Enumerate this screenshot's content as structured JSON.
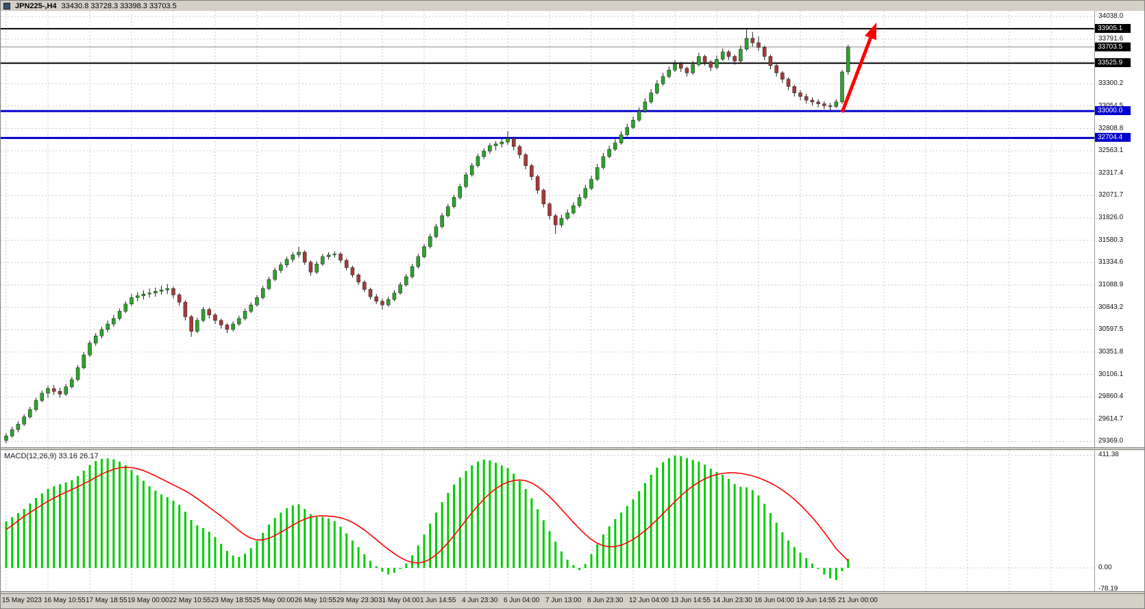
{
  "window": {
    "symbol_period": "JPN225-,H4",
    "ohlc": "33430.8 33728.3 33398.3 33703.5"
  },
  "macd": {
    "title": "MACD(12,26,9) 33.16 26.17",
    "macd_value": 33.16,
    "signal_value": 26.17
  },
  "price_axis_labels": [
    {
      "text": "33905.1",
      "value": 33905.1,
      "bg": "#000000"
    },
    {
      "text": "33703.5",
      "value": 33703.5,
      "bg": "#000000"
    },
    {
      "text": "33525.9",
      "value": 33525.9,
      "bg": "#000000"
    },
    {
      "text": "33000.0",
      "value": 33000.0,
      "bg": "#0000CC"
    },
    {
      "text": "32704.4",
      "value": 32704.4,
      "bg": "#0000CC"
    }
  ],
  "macd_axis": [
    {
      "text": "411.38",
      "value": 411.38
    },
    {
      "text": "0.00",
      "value": 0
    },
    {
      "text": "-78.19",
      "value": -78.19
    }
  ],
  "colors": {
    "bull": "#2DA32D",
    "bear": "#A63A3A",
    "wick": "#1a1a1a",
    "grid": "#c9c9c9",
    "macd_hist": "#00CC00",
    "macd_signal": "#FF0000",
    "hline_black": "#000000",
    "hline_blue": "#0000CC",
    "chrome": "#d4d0c8",
    "arrow": "#FF0000"
  },
  "arrow": {
    "from": [
      1228,
      163
    ],
    "to": [
      1278,
      32
    ],
    "color": "#FF0000",
    "width": 5
  },
  "chart_data": {
    "type": "candlestick",
    "symbol": "JPN225-",
    "timeframe": "H4",
    "title": "JPN225- H4 with MACD(12,26,9)",
    "x_labels": [
      "15 May 2023",
      "16 May 10:55",
      "17 May 18:55",
      "19 May 00:00",
      "22 May 10:55",
      "23 May 18:55",
      "25 May 00:00",
      "26 May 10:55",
      "29 May 23:30",
      "31 May 04:00",
      "1 Jun 14:55",
      "4 Jun 23:30",
      "6 Jun 04:00",
      "7 Jun 13:00",
      "8 Jun 23:30",
      "12 Jun 04:00",
      "13 Jun 14:55",
      "14 Jun 23:30",
      "16 Jun 04:00",
      "19 Jun 14:55",
      "21 Jun 00:00"
    ],
    "bars_per_label": 7,
    "last_price": 33703.5,
    "price_axis": {
      "min_visible": 29369.0,
      "max_visible": 34038.0,
      "ticks": [
        "34038.0",
        "33791.6",
        "33545.9",
        "33300.2",
        "33054.5",
        "32808.8",
        "32563.1",
        "32317.4",
        "32071.7",
        "31826.0",
        "31580.3",
        "31334.6",
        "31088.9",
        "30843.2",
        "30597.5",
        "30351.8",
        "30106.1",
        "29860.4",
        "29614.7",
        "29369.0"
      ]
    },
    "horizontal_lines": [
      {
        "value": 33905.1,
        "color": "#000000",
        "width": 2,
        "style": "solid"
      },
      {
        "value": 33703.5,
        "color": "#888888",
        "width": 1,
        "style": "solid"
      },
      {
        "value": 33525.9,
        "color": "#000000",
        "width": 2,
        "style": "solid"
      },
      {
        "value": 33000.0,
        "color": "#0000CC",
        "width": 3,
        "style": "solid"
      },
      {
        "value": 32704.4,
        "color": "#0000CC",
        "width": 3,
        "style": "solid"
      }
    ],
    "candles": [
      [
        29380,
        29460,
        29350,
        29430
      ],
      [
        29430,
        29530,
        29410,
        29500
      ],
      [
        29500,
        29590,
        29470,
        29560
      ],
      [
        29560,
        29670,
        29540,
        29640
      ],
      [
        29640,
        29750,
        29620,
        29720
      ],
      [
        29720,
        29850,
        29700,
        29820
      ],
      [
        29820,
        29930,
        29800,
        29900
      ],
      [
        29900,
        29980,
        29850,
        29950
      ],
      [
        29950,
        29990,
        29880,
        29920
      ],
      [
        29920,
        29960,
        29850,
        29890
      ],
      [
        29890,
        30000,
        29870,
        29970
      ],
      [
        29970,
        30080,
        29950,
        30050
      ],
      [
        30050,
        30210,
        30030,
        30180
      ],
      [
        30180,
        30350,
        30160,
        30320
      ],
      [
        30320,
        30480,
        30300,
        30450
      ],
      [
        30450,
        30560,
        30420,
        30530
      ],
      [
        30530,
        30630,
        30500,
        30600
      ],
      [
        30600,
        30700,
        30570,
        30660
      ],
      [
        30660,
        30760,
        30630,
        30720
      ],
      [
        30720,
        30830,
        30700,
        30800
      ],
      [
        30800,
        30910,
        30780,
        30880
      ],
      [
        30880,
        30990,
        30860,
        30950
      ],
      [
        30950,
        31010,
        30910,
        30970
      ],
      [
        30970,
        31030,
        30930,
        30990
      ],
      [
        30990,
        31050,
        30950,
        31000
      ],
      [
        31000,
        31060,
        30960,
        31020
      ],
      [
        31020,
        31080,
        30980,
        31035
      ],
      [
        31035,
        31100,
        30990,
        31050
      ],
      [
        31050,
        31070,
        30940,
        30980
      ],
      [
        30980,
        31000,
        30860,
        30900
      ],
      [
        30900,
        30920,
        30700,
        30740
      ],
      [
        30740,
        30760,
        30520,
        30580
      ],
      [
        30580,
        30730,
        30560,
        30700
      ],
      [
        30700,
        30850,
        30680,
        30820
      ],
      [
        30820,
        30840,
        30720,
        30760
      ],
      [
        30760,
        30780,
        30660,
        30700
      ],
      [
        30700,
        30720,
        30610,
        30650
      ],
      [
        30650,
        30670,
        30560,
        30600
      ],
      [
        30600,
        30690,
        30580,
        30660
      ],
      [
        30660,
        30750,
        30640,
        30720
      ],
      [
        30720,
        30830,
        30700,
        30800
      ],
      [
        30800,
        30900,
        30780,
        30870
      ],
      [
        30870,
        30980,
        30850,
        30950
      ],
      [
        30950,
        31080,
        30930,
        31050
      ],
      [
        31050,
        31180,
        31030,
        31150
      ],
      [
        31150,
        31280,
        31130,
        31250
      ],
      [
        31250,
        31340,
        31220,
        31310
      ],
      [
        31310,
        31400,
        31280,
        31370
      ],
      [
        31370,
        31450,
        31340,
        31420
      ],
      [
        31420,
        31510,
        31390,
        31450
      ],
      [
        31450,
        31470,
        31310,
        31340
      ],
      [
        31340,
        31360,
        31190,
        31230
      ],
      [
        31230,
        31350,
        31210,
        31320
      ],
      [
        31320,
        31430,
        31300,
        31400
      ],
      [
        31400,
        31450,
        31370,
        31420
      ],
      [
        31420,
        31460,
        31390,
        31430
      ],
      [
        31430,
        31450,
        31330,
        31360
      ],
      [
        31360,
        31380,
        31250,
        31280
      ],
      [
        31280,
        31300,
        31170,
        31200
      ],
      [
        31200,
        31220,
        31090,
        31120
      ],
      [
        31120,
        31140,
        31010,
        31040
      ],
      [
        31040,
        31060,
        30930,
        30960
      ],
      [
        30960,
        30990,
        30880,
        30910
      ],
      [
        30910,
        30940,
        30820,
        30870
      ],
      [
        30870,
        30960,
        30850,
        30930
      ],
      [
        30930,
        31030,
        30910,
        31000
      ],
      [
        31000,
        31120,
        30980,
        31090
      ],
      [
        31090,
        31210,
        31070,
        31180
      ],
      [
        31180,
        31320,
        31160,
        31290
      ],
      [
        31290,
        31430,
        31270,
        31400
      ],
      [
        31400,
        31540,
        31380,
        31510
      ],
      [
        31510,
        31650,
        31490,
        31620
      ],
      [
        31620,
        31760,
        31600,
        31730
      ],
      [
        31730,
        31880,
        31710,
        31850
      ],
      [
        31850,
        31980,
        31830,
        31950
      ],
      [
        31950,
        32080,
        31930,
        32050
      ],
      [
        32050,
        32200,
        32030,
        32170
      ],
      [
        32170,
        32330,
        32150,
        32300
      ],
      [
        32300,
        32430,
        32280,
        32400
      ],
      [
        32400,
        32530,
        32380,
        32500
      ],
      [
        32500,
        32590,
        32470,
        32560
      ],
      [
        32560,
        32650,
        32530,
        32620
      ],
      [
        32620,
        32670,
        32570,
        32640
      ],
      [
        32640,
        32700,
        32600,
        32660
      ],
      [
        32660,
        32780,
        32630,
        32700
      ],
      [
        32700,
        32720,
        32570,
        32610
      ],
      [
        32610,
        32630,
        32480,
        32520
      ],
      [
        32520,
        32540,
        32360,
        32400
      ],
      [
        32400,
        32420,
        32240,
        32280
      ],
      [
        32280,
        32300,
        32090,
        32130
      ],
      [
        32130,
        32150,
        31940,
        31980
      ],
      [
        31980,
        32000,
        31810,
        31850
      ],
      [
        31850,
        31870,
        31650,
        31750
      ],
      [
        31750,
        31860,
        31720,
        31820
      ],
      [
        31820,
        31920,
        31800,
        31880
      ],
      [
        31880,
        32000,
        31860,
        31960
      ],
      [
        31960,
        32090,
        31940,
        32050
      ],
      [
        32050,
        32190,
        32030,
        32150
      ],
      [
        32150,
        32290,
        32130,
        32250
      ],
      [
        32250,
        32420,
        32230,
        32380
      ],
      [
        32380,
        32540,
        32360,
        32500
      ],
      [
        32500,
        32620,
        32480,
        32580
      ],
      [
        32580,
        32690,
        32560,
        32650
      ],
      [
        32650,
        32780,
        32630,
        32740
      ],
      [
        32740,
        32860,
        32720,
        32820
      ],
      [
        32820,
        32940,
        32800,
        32900
      ],
      [
        32900,
        33040,
        32880,
        33000
      ],
      [
        33000,
        33140,
        32980,
        33100
      ],
      [
        33100,
        33240,
        33080,
        33200
      ],
      [
        33200,
        33340,
        33180,
        33300
      ],
      [
        33300,
        33420,
        33280,
        33380
      ],
      [
        33380,
        33490,
        33360,
        33450
      ],
      [
        33450,
        33560,
        33430,
        33520
      ],
      [
        33520,
        33540,
        33430,
        33470
      ],
      [
        33470,
        33490,
        33380,
        33420
      ],
      [
        33420,
        33550,
        33400,
        33510
      ],
      [
        33510,
        33640,
        33490,
        33600
      ],
      [
        33600,
        33620,
        33500,
        33540
      ],
      [
        33540,
        33560,
        33440,
        33480
      ],
      [
        33480,
        33610,
        33460,
        33570
      ],
      [
        33570,
        33690,
        33550,
        33650
      ],
      [
        33650,
        33670,
        33560,
        33600
      ],
      [
        33600,
        33620,
        33510,
        33550
      ],
      [
        33550,
        33720,
        33530,
        33680
      ],
      [
        33680,
        33905,
        33660,
        33800
      ],
      [
        33800,
        33870,
        33710,
        33750
      ],
      [
        33750,
        33820,
        33660,
        33700
      ],
      [
        33700,
        33720,
        33560,
        33600
      ],
      [
        33600,
        33620,
        33460,
        33500
      ],
      [
        33500,
        33520,
        33380,
        33420
      ],
      [
        33420,
        33440,
        33310,
        33350
      ],
      [
        33350,
        33370,
        33230,
        33270
      ],
      [
        33270,
        33290,
        33160,
        33200
      ],
      [
        33200,
        33230,
        33120,
        33160
      ],
      [
        33160,
        33190,
        33080,
        33120
      ],
      [
        33120,
        33150,
        33060,
        33100
      ],
      [
        33100,
        33130,
        33040,
        33080
      ],
      [
        33080,
        33110,
        33020,
        33060
      ],
      [
        33060,
        33090,
        33010,
        33050
      ],
      [
        33050,
        33130,
        33030,
        33100
      ],
      [
        33100,
        33450,
        33080,
        33430
      ],
      [
        33430.8,
        33728.3,
        33398.3,
        33703.5
      ]
    ],
    "macd": {
      "axis_max": 411.38,
      "axis_min": -78.19,
      "zero": 0.0,
      "histogram": [
        170,
        185,
        200,
        215,
        235,
        255,
        272,
        288,
        298,
        305,
        312,
        320,
        335,
        355,
        375,
        390,
        398,
        400,
        396,
        388,
        375,
        358,
        338,
        318,
        298,
        282,
        268,
        258,
        246,
        230,
        205,
        175,
        155,
        145,
        132,
        112,
        88,
        62,
        45,
        40,
        52,
        72,
        98,
        128,
        158,
        182,
        202,
        218,
        228,
        232,
        215,
        196,
        186,
        186,
        180,
        170,
        150,
        126,
        100,
        76,
        50,
        26,
        6,
        -14,
        -24,
        -18,
        -4,
        16,
        46,
        82,
        122,
        162,
        202,
        240,
        274,
        304,
        330,
        354,
        374,
        388,
        395,
        392,
        384,
        374,
        364,
        344,
        318,
        288,
        254,
        214,
        174,
        134,
        96,
        60,
        30,
        10,
        -8,
        14,
        50,
        86,
        122,
        152,
        178,
        202,
        226,
        250,
        280,
        310,
        340,
        366,
        386,
        400,
        410,
        408,
        401,
        394,
        388,
        377,
        362,
        350,
        340,
        325,
        306,
        296,
        294,
        284,
        264,
        234,
        200,
        165,
        130,
        100,
        76,
        56,
        36,
        16,
        -4,
        -24,
        -38,
        -44,
        -12,
        33.16
      ],
      "signal": [
        140,
        155,
        172,
        188,
        202,
        216,
        230,
        243,
        255,
        266,
        276,
        286,
        296,
        307,
        318,
        330,
        342,
        352,
        360,
        365,
        367,
        366,
        362,
        355,
        346,
        336,
        325,
        314,
        303,
        292,
        281,
        268,
        253,
        237,
        221,
        205,
        189,
        172,
        154,
        136,
        120,
        108,
        102,
        102,
        108,
        118,
        130,
        143,
        156,
        168,
        178,
        185,
        189,
        190,
        189,
        187,
        183,
        176,
        166,
        153,
        138,
        121,
        103,
        85,
        68,
        52,
        38,
        27,
        20,
        18,
        22,
        32,
        48,
        68,
        92,
        118,
        146,
        174,
        201,
        227,
        251,
        272,
        289,
        303,
        313,
        319,
        321,
        318,
        310,
        297,
        280,
        260,
        238,
        214,
        190,
        166,
        143,
        122,
        104,
        90,
        81,
        77,
        78,
        83,
        92,
        104,
        119,
        136,
        155,
        176,
        198,
        220,
        242,
        263,
        282,
        299,
        313,
        325,
        334,
        341,
        345,
        347,
        347,
        345,
        341,
        336,
        329,
        320,
        310,
        298,
        284,
        268,
        250,
        230,
        208,
        184,
        158,
        130,
        100,
        70,
        48,
        26.17
      ]
    }
  }
}
